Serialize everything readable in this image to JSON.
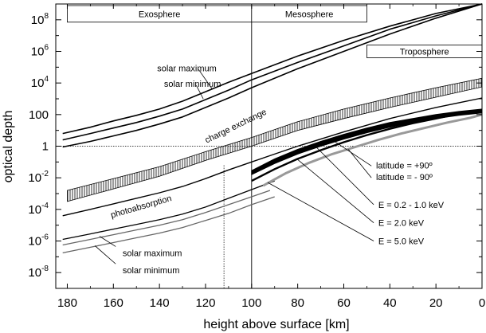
{
  "chart_data": {
    "type": "line",
    "xlabel": "height above surface  [km]",
    "ylabel": "optical depth",
    "xlim": [
      185,
      0
    ],
    "ylim_log10": [
      -9,
      9
    ],
    "y_scale": "log",
    "grid": false,
    "x_ticks": [
      {
        "value": 180,
        "label": "180"
      },
      {
        "value": 160,
        "label": "160"
      },
      {
        "value": 140,
        "label": "140"
      },
      {
        "value": 120,
        "label": "120"
      },
      {
        "value": 100,
        "label": "100"
      },
      {
        "value": 80,
        "label": "80"
      },
      {
        "value": 60,
        "label": "60"
      },
      {
        "value": 40,
        "label": "40"
      },
      {
        "value": 20,
        "label": "20"
      },
      {
        "value": 0,
        "label": "0"
      }
    ],
    "y_ticks": [
      {
        "exp": 8,
        "base": "10",
        "sup": "8"
      },
      {
        "exp": 6,
        "base": "10",
        "sup": "6"
      },
      {
        "exp": 4,
        "base": "10",
        "sup": "4"
      },
      {
        "exp": 2,
        "base": "100",
        "sup": ""
      },
      {
        "exp": 0,
        "base": "1",
        "sup": ""
      },
      {
        "exp": -2,
        "base": "10",
        "sup": "-2"
      },
      {
        "exp": -4,
        "base": "10",
        "sup": "-4"
      },
      {
        "exp": -6,
        "base": "10",
        "sup": "-6"
      },
      {
        "exp": -8,
        "base": "10",
        "sup": "-8"
      }
    ],
    "regions": [
      {
        "label": "Exosphere",
        "x_from": 180,
        "x_to": 100,
        "y_log10_top": 8.9,
        "y_log10_bottom": 7.85
      },
      {
        "label": "Mesosphere",
        "x_from": 100,
        "x_to": 50,
        "y_log10_top": 8.9,
        "y_log10_bottom": 7.85
      },
      {
        "label": "Troposphere",
        "x_from": 50,
        "x_to": 0,
        "y_log10_top": 6.4,
        "y_log10_bottom": 5.6
      }
    ],
    "bands": [
      {
        "name": "charge exchange",
        "hatched": true,
        "x": [
          180,
          160,
          140,
          120,
          100,
          80,
          60,
          40,
          20,
          0
        ],
        "lower_log10": [
          -3.5,
          -2.7,
          -1.9,
          -0.9,
          0.0,
          1.0,
          1.75,
          2.45,
          3.1,
          3.75
        ],
        "upper_log10": [
          -2.8,
          -2.05,
          -1.3,
          -0.35,
          0.55,
          1.55,
          2.35,
          3.05,
          3.7,
          4.3
        ]
      },
      {
        "name": "latitude = +90° / latitude = -90°",
        "hatched": false,
        "x": [
          100,
          90,
          80,
          70,
          60,
          50,
          40,
          30,
          20,
          10,
          0
        ],
        "lower_log10": [
          -1.8,
          -1.1,
          -0.5,
          0.0,
          0.45,
          0.85,
          1.2,
          1.5,
          1.75,
          1.95,
          2.1
        ],
        "upper_log10": [
          -1.55,
          -0.8,
          -0.2,
          0.3,
          0.75,
          1.15,
          1.5,
          1.75,
          2.0,
          2.2,
          2.35
        ]
      }
    ],
    "series": [
      {
        "name": "solar maximum",
        "color": "#000000",
        "width": 1.6,
        "x": [
          182,
          170,
          160,
          150,
          140,
          130,
          120,
          110,
          100,
          80,
          60,
          40,
          20,
          0
        ],
        "y_log10": [
          0.8,
          1.2,
          1.6,
          1.95,
          2.35,
          2.85,
          3.45,
          4.05,
          4.6,
          5.7,
          6.7,
          7.6,
          8.4,
          9.0
        ]
      },
      {
        "name": "solar minimum",
        "color": "#000000",
        "width": 1.6,
        "x": [
          182,
          170,
          160,
          150,
          140,
          130,
          120,
          110,
          100,
          80,
          60,
          40,
          20,
          0
        ],
        "y_log10": [
          0.4,
          0.8,
          1.15,
          1.5,
          1.9,
          2.35,
          2.95,
          3.55,
          4.2,
          5.3,
          6.35,
          7.4,
          8.25,
          9.0
        ]
      },
      {
        "name": "",
        "color": "#000000",
        "width": 1.6,
        "x": [
          182,
          170,
          160,
          150,
          140,
          130,
          120,
          110,
          100,
          80,
          60,
          40,
          20,
          0
        ],
        "y_log10": [
          -0.05,
          0.3,
          0.65,
          1.0,
          1.4,
          1.85,
          2.45,
          3.05,
          3.7,
          4.9,
          6.0,
          7.1,
          8.1,
          9.0
        ]
      },
      {
        "name": "E = 0.2 - 1.0 keV",
        "color": "#000000",
        "width": 1.4,
        "x": [
          182,
          170,
          160,
          150,
          140,
          130,
          120,
          110,
          100,
          90,
          80,
          60,
          40,
          20,
          0
        ],
        "y_log10": [
          -4.4,
          -4.0,
          -3.65,
          -3.3,
          -2.95,
          -2.55,
          -2.05,
          -1.5,
          -1.0,
          -0.5,
          0.0,
          0.9,
          1.75,
          2.45,
          3.05
        ]
      },
      {
        "name": "photoabsorption solar maximum",
        "color": "#000000",
        "width": 1.3,
        "x": [
          182,
          170,
          160,
          150,
          140,
          130,
          120,
          110,
          100,
          90
        ],
        "y_log10": [
          -5.9,
          -5.55,
          -5.25,
          -4.95,
          -4.65,
          -4.3,
          -3.85,
          -3.3,
          -2.75,
          -2.2
        ]
      },
      {
        "name": "solar maximum",
        "color": "#666666",
        "width": 1.3,
        "x": [
          182,
          170,
          160,
          150,
          140,
          130,
          120,
          110,
          100,
          92
        ],
        "y_log10": [
          -6.25,
          -5.9,
          -5.6,
          -5.3,
          -5.0,
          -4.65,
          -4.2,
          -3.7,
          -3.2,
          -2.8
        ]
      },
      {
        "name": "solar minimum",
        "color": "#666666",
        "width": 1.3,
        "x": [
          182,
          170,
          160,
          150,
          140,
          130,
          120,
          110,
          100,
          90
        ],
        "y_log10": [
          -6.75,
          -6.4,
          -6.1,
          -5.8,
          -5.5,
          -5.15,
          -4.7,
          -4.25,
          -3.7,
          -3.2
        ]
      },
      {
        "name": "E = 2.0 keV",
        "color": "#000000",
        "width": 2.4,
        "x": [
          100,
          90,
          80,
          70,
          60,
          50,
          40,
          30,
          20,
          10,
          0
        ],
        "y_log10": [
          -2.2,
          -1.45,
          -0.8,
          -0.25,
          0.25,
          0.7,
          1.1,
          1.45,
          1.75,
          2.05,
          2.3
        ]
      },
      {
        "name": "E = 5.0 keV",
        "color": "#999999",
        "width": 3.0,
        "x": [
          95,
          85,
          75,
          65,
          55,
          45,
          35,
          25,
          15,
          5,
          0
        ],
        "y_log10": [
          -2.5,
          -1.7,
          -1.05,
          -0.5,
          -0.05,
          0.4,
          0.8,
          1.15,
          1.5,
          1.8,
          2.0
        ]
      }
    ],
    "reference_lines": [
      {
        "orientation": "horizontal",
        "y_log10": 0,
        "x_from": 185,
        "x_to": 0,
        "dashed": true
      },
      {
        "orientation": "vertical",
        "x": 112,
        "y_log10_from": -9,
        "y_log10_to": -1.2,
        "dashed": true
      },
      {
        "orientation": "vertical",
        "x": 100,
        "y_log10_from": -9,
        "y_log10_to": 7.85,
        "dashed": false
      }
    ],
    "annotations": [
      {
        "text": "solar maximum",
        "x": 141,
        "y_log10": 4.95,
        "rotate": 0,
        "leader": {
          "from_x": 123,
          "from_y_log10": 4.85,
          "to_x": 117,
          "to_y_log10": 3.6
        }
      },
      {
        "text": "solar minimum",
        "x": 138,
        "y_log10": 3.95,
        "rotate": 0,
        "leader": {
          "from_x": 124,
          "from_y_log10": 3.85,
          "to_x": 121,
          "to_y_log10": 3.0
        }
      },
      {
        "text": "charge exchange",
        "x": 107,
        "y_log10": 1.3,
        "rotate": -26,
        "leader": null
      },
      {
        "text": "photoabsorption",
        "x": 148,
        "y_log10": -3.8,
        "rotate": -16,
        "leader": null
      },
      {
        "text": "latitude = +90º",
        "x": 46,
        "y_log10": -1.2,
        "rotate": 0,
        "leader": {
          "from_x": 48,
          "from_y_log10": -1.25,
          "to_x": 64,
          "to_y_log10": 0.3
        }
      },
      {
        "text": "latitude = - 90º",
        "x": 46,
        "y_log10": -1.95,
        "rotate": 0,
        "leader": {
          "from_x": 48,
          "from_y_log10": -2.0,
          "to_x": 58,
          "to_y_log10": -0.2
        }
      },
      {
        "text": "E = 0.2 - 1.0 keV",
        "x": 45,
        "y_log10": -3.7,
        "rotate": 0,
        "leader": {
          "from_x": 47,
          "from_y_log10": -3.7,
          "to_x": 72,
          "to_y_log10": -0.05
        }
      },
      {
        "text": "E = 2.0 keV",
        "x": 45,
        "y_log10": -4.85,
        "rotate": 0,
        "leader": {
          "from_x": 47,
          "from_y_log10": -4.85,
          "to_x": 80,
          "to_y_log10": -0.85
        }
      },
      {
        "text": "E = 5.0 keV",
        "x": 45,
        "y_log10": -6.0,
        "rotate": 0,
        "leader": {
          "from_x": 47,
          "from_y_log10": -6.0,
          "to_x": 93,
          "to_y_log10": -2.3
        }
      },
      {
        "text": "solar maximum",
        "x": 156,
        "y_log10": -6.75,
        "rotate": 0,
        "leader": {
          "from_x": 159,
          "from_y_log10": -6.35,
          "to_x": 166,
          "to_y_log10": -5.7
        }
      },
      {
        "text": "solar minimum",
        "x": 156,
        "y_log10": -7.85,
        "rotate": 0,
        "leader": {
          "from_x": 159,
          "from_y_log10": -7.45,
          "to_x": 168,
          "to_y_log10": -6.3
        }
      }
    ]
  }
}
